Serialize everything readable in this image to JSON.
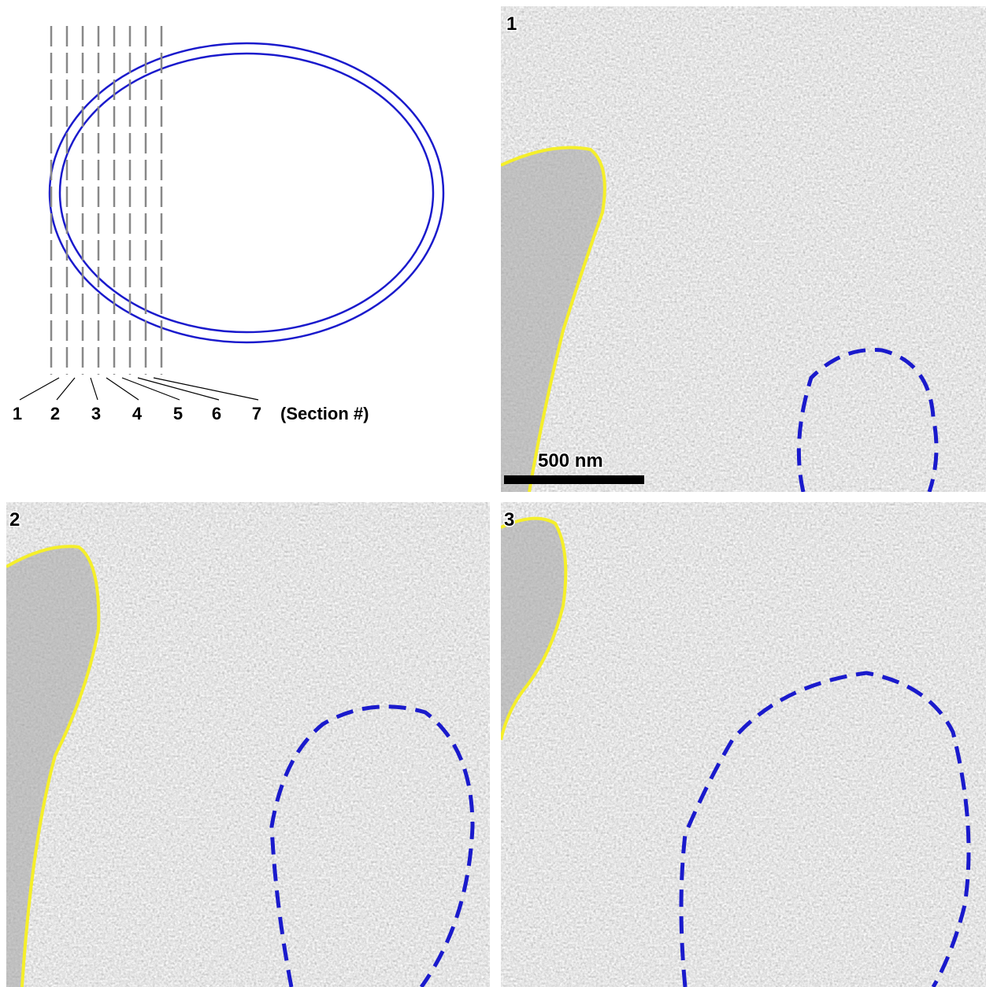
{
  "diagram": {
    "section_labels": [
      "1",
      "2",
      "3",
      "4",
      "5",
      "6",
      "7"
    ],
    "caption": "(Section #)"
  },
  "panels": [
    {
      "label": "1",
      "scale_bar": "500 nm"
    },
    {
      "label": "2"
    },
    {
      "label": "3"
    }
  ]
}
